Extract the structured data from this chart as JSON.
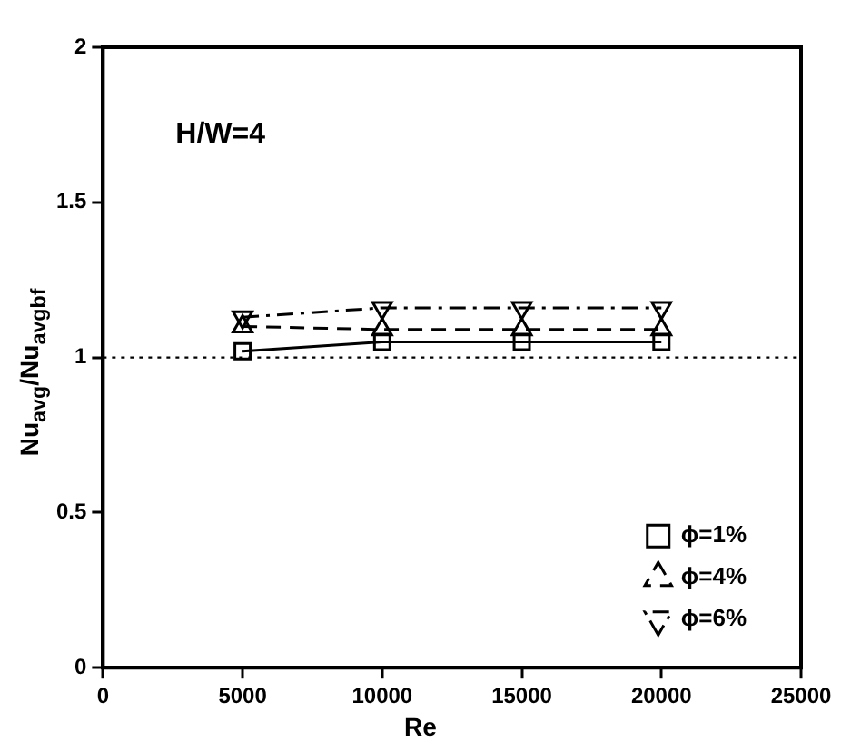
{
  "chart_data": {
    "type": "line",
    "xlabel": "Re",
    "ylabel": "Nu$_{avg}$/Nu$_{avgbf}$",
    "annotations": [
      "H/W=4"
    ],
    "x": [
      5000,
      10000,
      15000,
      20000
    ],
    "series": [
      {
        "name": "ϕ=1%",
        "color": "#000000",
        "marker": "square",
        "line_style": "solid",
        "values": [
          1.02,
          1.05,
          1.05,
          1.05
        ]
      },
      {
        "name": "ϕ=4%",
        "color": "#000000",
        "marker": "triangle",
        "line_style": "dashed",
        "values": [
          1.1,
          1.09,
          1.09,
          1.09
        ]
      },
      {
        "name": "ϕ=6%",
        "color": "#000000",
        "marker": "triangle-down",
        "line_style": "dashdot",
        "values": [
          1.13,
          1.16,
          1.16,
          1.16
        ]
      }
    ],
    "xlim": [
      0,
      25000
    ],
    "xticks": [
      0,
      5000,
      10000,
      15000,
      20000,
      25000
    ],
    "ylim": [
      0,
      2
    ],
    "yticks": [
      0,
      0.5,
      1,
      1.5,
      2
    ],
    "ref_lines": [
      {
        "axis": "y",
        "value": 1,
        "line_style": "dotted",
        "color": "#000000"
      }
    ],
    "grid": false,
    "legend": "bottom right"
  }
}
